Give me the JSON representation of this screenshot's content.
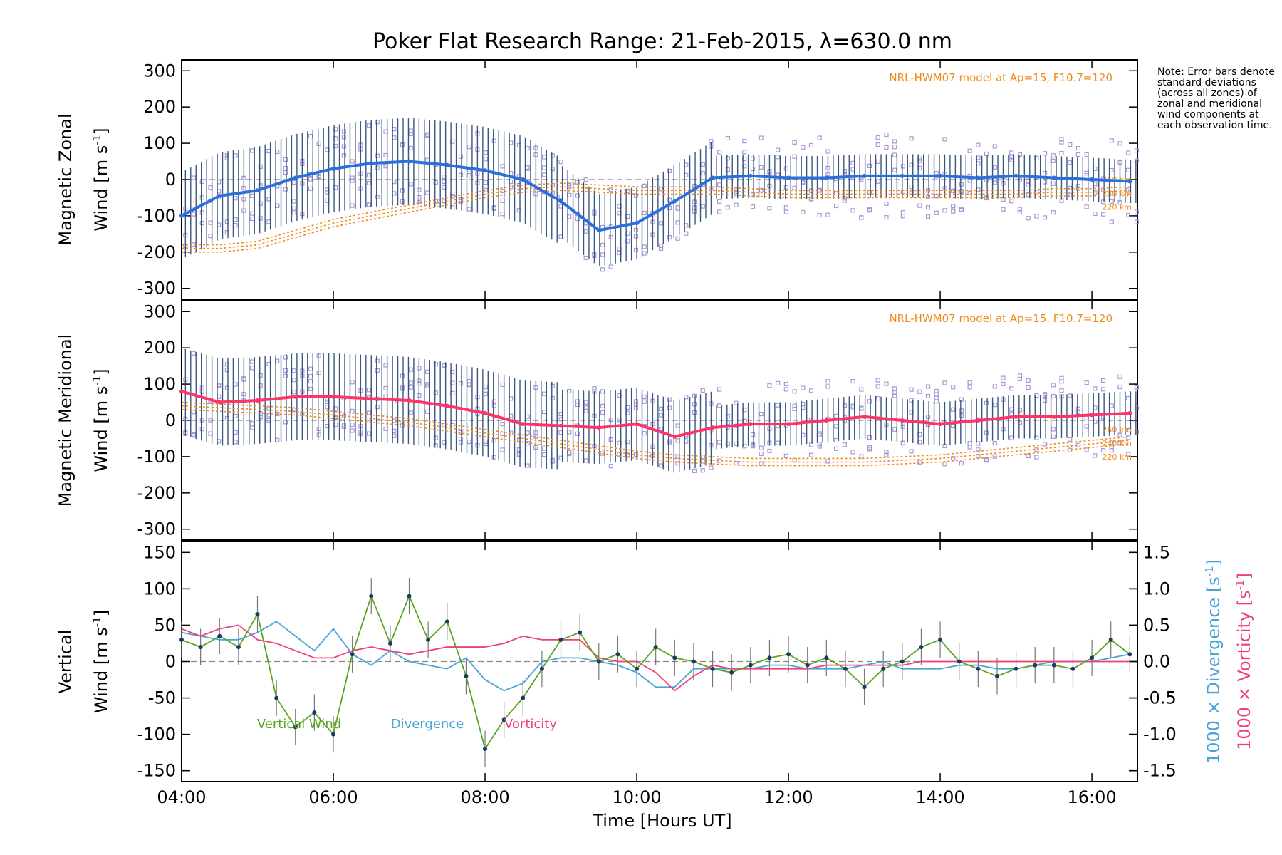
{
  "title": "Poker Flat Research Range: 21-Feb-2015, λ=630.0 nm",
  "note": "Note: Error bars denote standard deviations (across all zones) of zonal and meridional wind components at each observation time.",
  "colors": {
    "zonal": "#2a6fdc",
    "meridional": "#ff3366",
    "vertical": "#5aa520",
    "divergence": "#4aa3d8",
    "vorticity": "#f0407a",
    "model": "#f08a1c",
    "scatter": "#a89ad8",
    "errorbar": "#1a3a6a"
  },
  "time_axis": {
    "label": "Time [Hours UT]",
    "ticks": [
      "04:00",
      "06:00",
      "08:00",
      "10:00",
      "12:00",
      "14:00",
      "16:00"
    ],
    "tick_hours": [
      4,
      6,
      8,
      10,
      12,
      14,
      16
    ],
    "range": [
      4.0,
      16.6
    ]
  },
  "chart_data": [
    {
      "type": "line",
      "panel": "zonal",
      "ylabel_line1": "Magnetic Zonal",
      "ylabel_line2": "Wind [m s",
      "ylabel_sup": "-1",
      "ylabel_end": "]",
      "ylim": [
        -330,
        330
      ],
      "yticks": [
        "300",
        "200",
        "100",
        "0",
        "-100",
        "-200",
        "-300"
      ],
      "ytick_values": [
        300,
        200,
        100,
        0,
        -100,
        -200,
        -300
      ],
      "model_label": "NRL-HWM07 model at Ap=15, F10.7=120",
      "model_alt_labels": [
        "260 km",
        "240 km",
        "220 km"
      ],
      "x": [
        4.0,
        4.5,
        5.0,
        5.5,
        6.0,
        6.5,
        7.0,
        7.5,
        8.0,
        8.5,
        9.0,
        9.5,
        10.0,
        10.5,
        11.0,
        11.5,
        12.0,
        12.5,
        13.0,
        13.5,
        14.0,
        14.5,
        15.0,
        15.5,
        16.0,
        16.5
      ],
      "series": [
        {
          "values": [
            -100,
            -45,
            -30,
            5,
            30,
            45,
            50,
            40,
            25,
            0,
            -60,
            -140,
            -120,
            -60,
            5,
            10,
            5,
            5,
            10,
            10,
            10,
            5,
            10,
            5,
            0,
            -5
          ]
        },
        {
          "values": [
            -180,
            -180,
            -170,
            -140,
            -110,
            -90,
            -70,
            -50,
            -30,
            -15,
            -10,
            -15,
            -20,
            -20,
            -20,
            -25,
            -30,
            -30,
            -30,
            -30,
            -30,
            -30,
            -30,
            -25,
            -25,
            -20
          ]
        }
      ]
    },
    {
      "type": "line",
      "panel": "meridional",
      "ylabel_line1": "Magnetic Meridional",
      "ylabel_line2": "Wind [m s",
      "ylabel_sup": "-1",
      "ylabel_end": "]",
      "ylim": [
        -330,
        330
      ],
      "yticks": [
        "300",
        "200",
        "100",
        "0",
        "-100",
        "-200",
        "-300"
      ],
      "ytick_values": [
        300,
        200,
        100,
        0,
        -100,
        -200,
        -300
      ],
      "model_label": "NRL-HWM07 model at Ap=15, F10.7=120",
      "model_alt_labels": [
        "260 km",
        "240 km",
        "220 km"
      ],
      "x": [
        4.0,
        4.5,
        5.0,
        5.5,
        6.0,
        6.5,
        7.0,
        7.5,
        8.0,
        8.5,
        9.0,
        9.5,
        10.0,
        10.5,
        11.0,
        11.5,
        12.0,
        12.5,
        13.0,
        13.5,
        14.0,
        14.5,
        15.0,
        15.5,
        16.0,
        16.5
      ],
      "series": [
        {
          "values": [
            80,
            50,
            55,
            65,
            65,
            60,
            55,
            40,
            20,
            -10,
            -15,
            -20,
            -10,
            -45,
            -20,
            -10,
            -10,
            0,
            10,
            0,
            -10,
            0,
            10,
            10,
            15,
            20
          ]
        },
        {
          "values": [
            50,
            45,
            40,
            35,
            25,
            15,
            5,
            -10,
            -25,
            -40,
            -55,
            -70,
            -85,
            -95,
            -100,
            -105,
            -105,
            -105,
            -105,
            -100,
            -95,
            -85,
            -75,
            -65,
            -55,
            -45
          ]
        }
      ]
    },
    {
      "type": "line",
      "panel": "vertical",
      "ylabel_line1": "Vertical",
      "ylabel_line2": "Wind [m s",
      "ylabel_sup": "-1",
      "ylabel_end": "]",
      "ylim": [
        -165,
        165
      ],
      "yticks": [
        "150",
        "100",
        "50",
        "0",
        "-50",
        "-100",
        "-150"
      ],
      "ytick_values": [
        150,
        100,
        50,
        0,
        -50,
        -100,
        -150
      ],
      "right_ylim": [
        -1.65,
        1.65
      ],
      "right_yticks": [
        "1.5",
        "1.0",
        "0.5",
        "0.0",
        "-0.5",
        "-1.0",
        "-1.5"
      ],
      "right_ytick_values": [
        1.5,
        1.0,
        0.5,
        0.0,
        -0.5,
        -1.0,
        -1.5
      ],
      "right_label_divergence": "1000 × Divergence [s",
      "right_label_vorticity": "1000 × Vorticity [s",
      "right_label_sup": "-1",
      "right_label_end": "]",
      "legend": [
        "Vertical Wind",
        "Divergence",
        "Vorticity"
      ],
      "x": [
        4.0,
        4.25,
        4.5,
        4.75,
        5.0,
        5.25,
        5.5,
        5.75,
        6.0,
        6.25,
        6.5,
        6.75,
        7.0,
        7.25,
        7.5,
        7.75,
        8.0,
        8.25,
        8.5,
        8.75,
        9.0,
        9.25,
        9.5,
        9.75,
        10.0,
        10.25,
        10.5,
        10.75,
        11.0,
        11.25,
        11.5,
        11.75,
        12.0,
        12.25,
        12.5,
        12.75,
        13.0,
        13.25,
        13.5,
        13.75,
        14.0,
        14.25,
        14.5,
        14.75,
        15.0,
        15.25,
        15.5,
        15.75,
        16.0,
        16.25,
        16.5
      ],
      "series": [
        {
          "name": "Vertical Wind",
          "values": [
            30,
            20,
            35,
            20,
            65,
            -50,
            -90,
            -70,
            -100,
            10,
            90,
            25,
            90,
            30,
            55,
            -20,
            -120,
            -80,
            -50,
            -10,
            30,
            40,
            0,
            10,
            -10,
            20,
            5,
            0,
            -10,
            -15,
            -5,
            5,
            10,
            -5,
            5,
            -10,
            -35,
            -10,
            0,
            20,
            30,
            0,
            -10,
            -20,
            -10,
            -5,
            -5,
            -10,
            5,
            30,
            10
          ]
        },
        {
          "name": "Divergence",
          "values": [
            0.4,
            0.35,
            0.3,
            0.3,
            0.4,
            0.55,
            0.35,
            0.15,
            0.45,
            0.1,
            -0.05,
            0.15,
            0.0,
            -0.05,
            -0.1,
            0.05,
            -0.25,
            -0.4,
            -0.3,
            0.0,
            0.05,
            0.05,
            0.0,
            -0.05,
            -0.15,
            -0.35,
            -0.35,
            -0.1,
            -0.1,
            -0.1,
            -0.1,
            -0.05,
            -0.05,
            -0.1,
            -0.1,
            -0.1,
            -0.05,
            0.0,
            -0.1,
            -0.1,
            -0.1,
            -0.05,
            -0.05,
            -0.1,
            -0.1,
            -0.05,
            0.0,
            0.0,
            0.0,
            0.05,
            0.1
          ]
        },
        {
          "name": "Vorticity",
          "values": [
            0.45,
            0.35,
            0.45,
            0.5,
            0.3,
            0.25,
            0.15,
            0.05,
            0.05,
            0.15,
            0.2,
            0.15,
            0.1,
            0.15,
            0.2,
            0.2,
            0.2,
            0.25,
            0.35,
            0.3,
            0.3,
            0.3,
            0.05,
            0.0,
            0.0,
            -0.15,
            -0.4,
            -0.2,
            -0.05,
            -0.1,
            -0.1,
            -0.1,
            -0.1,
            -0.1,
            -0.05,
            -0.05,
            -0.05,
            -0.05,
            -0.05,
            0.0,
            0.0,
            0.0,
            0.0,
            0.0,
            0.0,
            0.0,
            0.0,
            0.0,
            0.0,
            0.0,
            0.0
          ]
        }
      ]
    }
  ]
}
